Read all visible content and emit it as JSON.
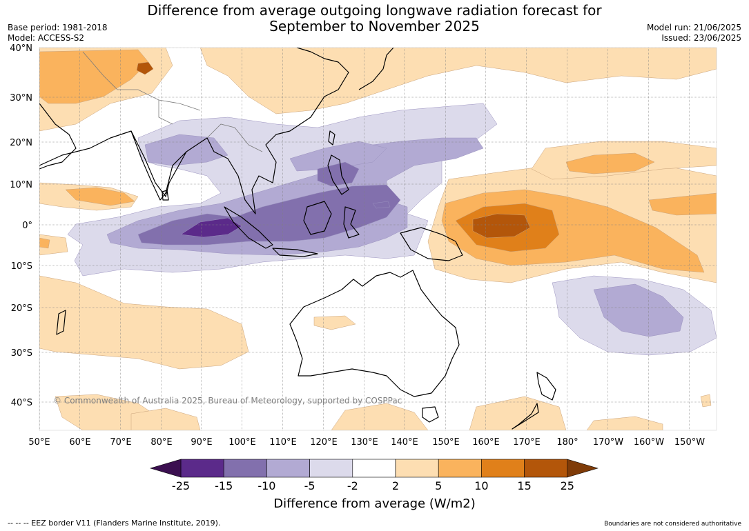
{
  "title": {
    "line1": "Difference from average outgoing longwave radiation forecast for",
    "line2": "September to November 2025"
  },
  "meta_left": {
    "base_period": "Base period: 1981-2018",
    "model": "Model: ACCESS-S2"
  },
  "meta_right": {
    "model_run": "Model run: 21/06/2025",
    "issued": "Issued: 23/06/2025"
  },
  "map": {
    "lat_labels": [
      "40°N",
      "30°N",
      "20°N",
      "10°N",
      "0°",
      "10°S",
      "20°S",
      "30°S",
      "40°S"
    ],
    "lon_labels": [
      "50°E",
      "60°E",
      "70°E",
      "80°E",
      "90°E",
      "100°E",
      "110°E",
      "120°E",
      "130°E",
      "140°E",
      "150°E",
      "160°E",
      "170°E",
      "180°",
      "170°W",
      "160°W",
      "150°W"
    ]
  },
  "colorbar": {
    "tick_labels": [
      "-25",
      "-15",
      "-10",
      "-5",
      "-2",
      "2",
      "5",
      "10",
      "15",
      "25"
    ],
    "colors": [
      "#3b0f50",
      "#5b2a8a",
      "#8270ad",
      "#b2aad3",
      "#dcdaeb",
      "#ffffff",
      "#fddeb2",
      "#fab35d",
      "#e0801a",
      "#b3560a",
      "#7f3b08"
    ],
    "label": "Difference from average (W/m2)"
  },
  "copyright": "© Commonwealth of Australia 2025, Bureau of Meteorology, supported by COSPPac",
  "footer": {
    "left": "--  --  -- EEZ border V11 (Flanders Marine Institute, 2019).",
    "right": "Boundaries are not considered authoritative"
  }
}
